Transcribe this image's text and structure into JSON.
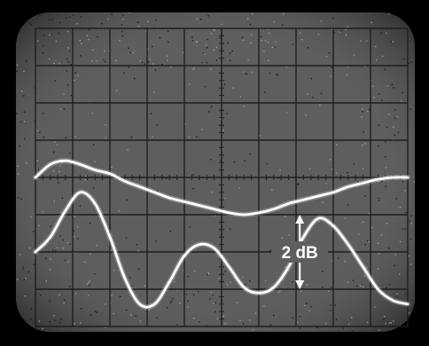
{
  "chart_data": {
    "type": "line",
    "title": "",
    "xlabel": "",
    "ylabel": "",
    "grid": true,
    "grid_divisions": {
      "x": 10,
      "y": 8
    },
    "xlim": [
      0,
      10
    ],
    "ylim": [
      0,
      8
    ],
    "series": [
      {
        "x": [
          0,
          0.4,
          0.8,
          1.2,
          1.6,
          2.0,
          2.4,
          2.8,
          3.2,
          3.6,
          4.0,
          4.4,
          4.8,
          5.2,
          5.6,
          6.0,
          6.4,
          6.8,
          7.2,
          7.6,
          8.0,
          8.4,
          8.8,
          9.2,
          9.6,
          10.0
        ],
        "y": [
          4.0,
          4.35,
          4.45,
          4.35,
          4.2,
          4.1,
          3.9,
          3.75,
          3.6,
          3.45,
          3.35,
          3.25,
          3.15,
          3.05,
          3.0,
          3.05,
          3.15,
          3.3,
          3.4,
          3.5,
          3.6,
          3.75,
          3.85,
          3.95,
          4.0,
          4.0
        ]
      },
      {
        "x": [
          0,
          0.4,
          0.8,
          1.2,
          1.6,
          2.0,
          2.4,
          2.8,
          3.2,
          3.6,
          4.0,
          4.4,
          4.8,
          5.2,
          5.6,
          6.0,
          6.4,
          6.8,
          7.2,
          7.6,
          8.0,
          8.4,
          8.8,
          9.2,
          9.6,
          10.0
        ],
        "y": [
          2.0,
          2.4,
          3.1,
          3.6,
          3.3,
          2.4,
          1.3,
          0.6,
          0.6,
          1.2,
          1.9,
          2.2,
          2.1,
          1.6,
          1.05,
          0.9,
          1.05,
          1.6,
          2.4,
          2.9,
          2.7,
          2.2,
          1.6,
          1.0,
          0.7,
          0.6
        ]
      }
    ],
    "annotations": [
      {
        "text": "2 dB",
        "x": 7.1,
        "y_from": 1.0,
        "y_to": 3.0
      }
    ]
  }
}
